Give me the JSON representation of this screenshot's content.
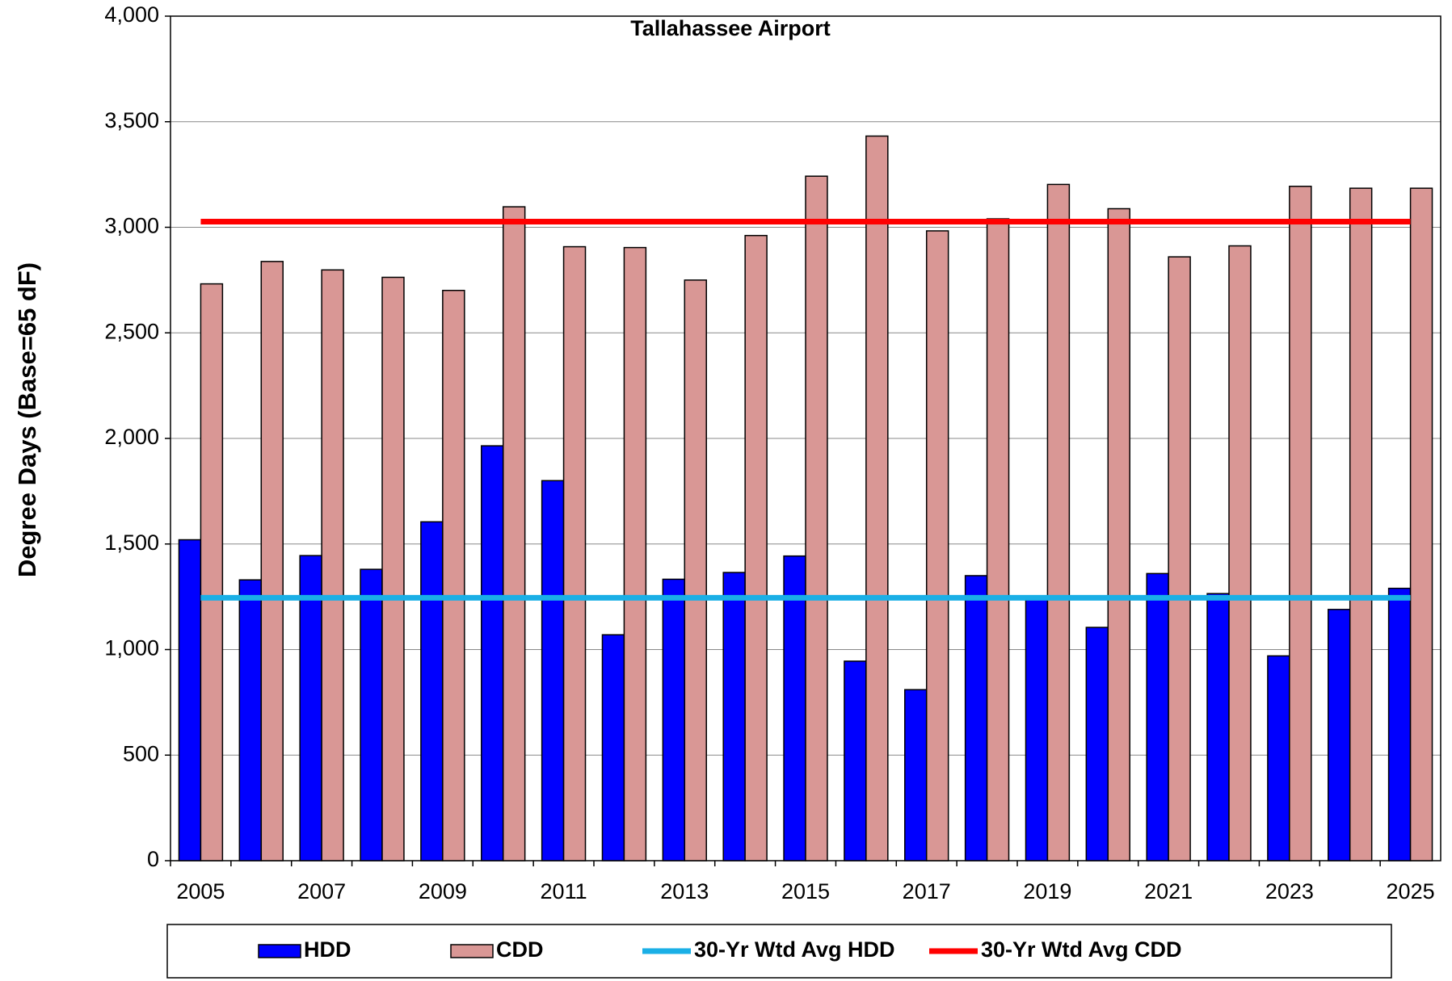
{
  "chart_data": {
    "type": "bar",
    "title": "Tallahassee Airport",
    "y_label": "Degree Days (Base=65 dF)",
    "categories": [
      "2005",
      null,
      "2007",
      null,
      "2009",
      null,
      "2011",
      null,
      "2013",
      null,
      "2015",
      null,
      "2017",
      null,
      "2019",
      null,
      "2021",
      null,
      "2023",
      null,
      "2025"
    ],
    "series": [
      {
        "name": "HDD",
        "type": "bar",
        "color": "#0000ff",
        "values": [
          1520,
          1330,
          1445,
          1380,
          1605,
          1965,
          1800,
          1070,
          1333,
          1365,
          1443,
          945,
          810,
          1350,
          1255,
          1105,
          1360,
          1265,
          970,
          1190,
          1290
        ]
      },
      {
        "name": "CDD",
        "type": "bar",
        "color": "#d99795",
        "values": [
          2732,
          2838,
          2798,
          2763,
          2701,
          3097,
          2908,
          2904,
          2750,
          2961,
          3242,
          3432,
          2983,
          3040,
          3203,
          3088,
          2860,
          2912,
          3194,
          3185,
          3185
        ]
      },
      {
        "name": "30-Yr Wtd Avg HDD",
        "type": "line",
        "color": "#1aafe6",
        "values": [
          1245,
          1245,
          1245,
          1245,
          1245,
          1245,
          1245,
          1245,
          1245,
          1245,
          1245,
          1245,
          1245,
          1245,
          1245,
          1245,
          1245,
          1245,
          1245,
          1245,
          1245
        ]
      },
      {
        "name": "30-Yr Wtd Avg CDD",
        "type": "line",
        "color": "#ff0000",
        "values": [
          3027,
          3027,
          3027,
          3027,
          3027,
          3027,
          3027,
          3027,
          3027,
          3027,
          3027,
          3027,
          3027,
          3027,
          3027,
          3027,
          3027,
          3027,
          3027,
          3027,
          3027
        ]
      }
    ],
    "ylim": [
      0,
      4000
    ],
    "yticks": [
      0,
      500,
      {
        "value": 1000,
        "label": "1,000"
      },
      {
        "value": 1500,
        "label": "1,500"
      },
      {
        "value": 2000,
        "label": "2,000"
      },
      {
        "value": 2500,
        "label": "2,500"
      },
      {
        "value": 3000,
        "label": "3,000"
      },
      {
        "value": 3500,
        "label": "3,500"
      },
      {
        "value": 4000,
        "label": "4,000"
      }
    ],
    "grid": true,
    "legend": "bottom"
  }
}
